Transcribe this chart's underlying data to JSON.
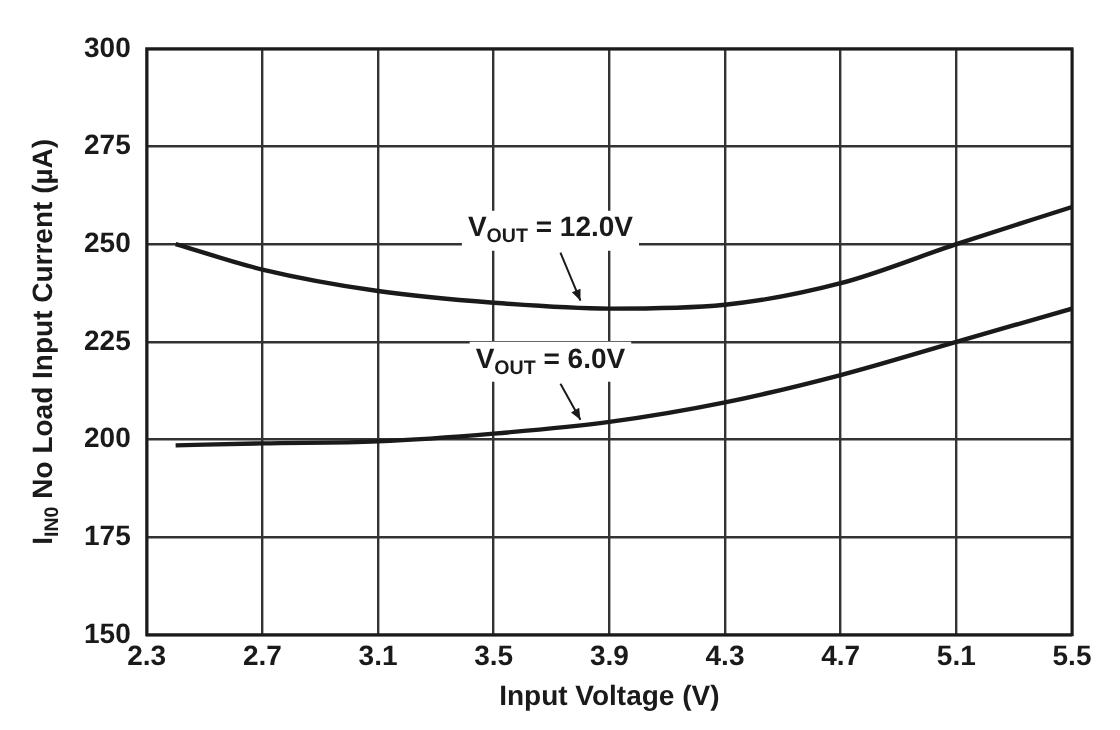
{
  "chart_data": {
    "type": "line",
    "xlabel": "Input Voltage (V)",
    "ylabel": "I$_{IN0}$ No Load Input Current (µA)",
    "x": [
      2.4,
      2.7,
      3.1,
      3.5,
      3.9,
      4.3,
      4.7,
      5.1,
      5.5
    ],
    "series": [
      {
        "color": "#1a1a1a",
        "values": [
          250,
          243.5,
          238,
          235,
          233.5,
          234.5,
          240,
          250,
          259.5
        ]
      },
      {
        "color": "#1a1a1a",
        "values": [
          198.5,
          199,
          199.5,
          201.5,
          204.5,
          209.5,
          216.5,
          225,
          233.5
        ]
      }
    ],
    "xlim": [
      2.3,
      5.5
    ],
    "xticks": [
      2.3,
      2.7,
      3.1,
      3.5,
      3.9,
      4.3,
      4.7,
      5.1,
      5.5
    ],
    "ylim": [
      150,
      300
    ],
    "yticks": [
      150,
      175,
      200,
      225,
      250,
      275,
      300
    ],
    "grid": true,
    "legend": false,
    "marker": "none",
    "line_style": "solid",
    "annotations": [
      {
        "text": "V$_{OUT}$ = 12.0V",
        "x": 3.8,
        "y": 234
      },
      {
        "text": "V$_{OUT}$ = 6.0V",
        "x": 3.8,
        "y": 203.5
      }
    ]
  }
}
